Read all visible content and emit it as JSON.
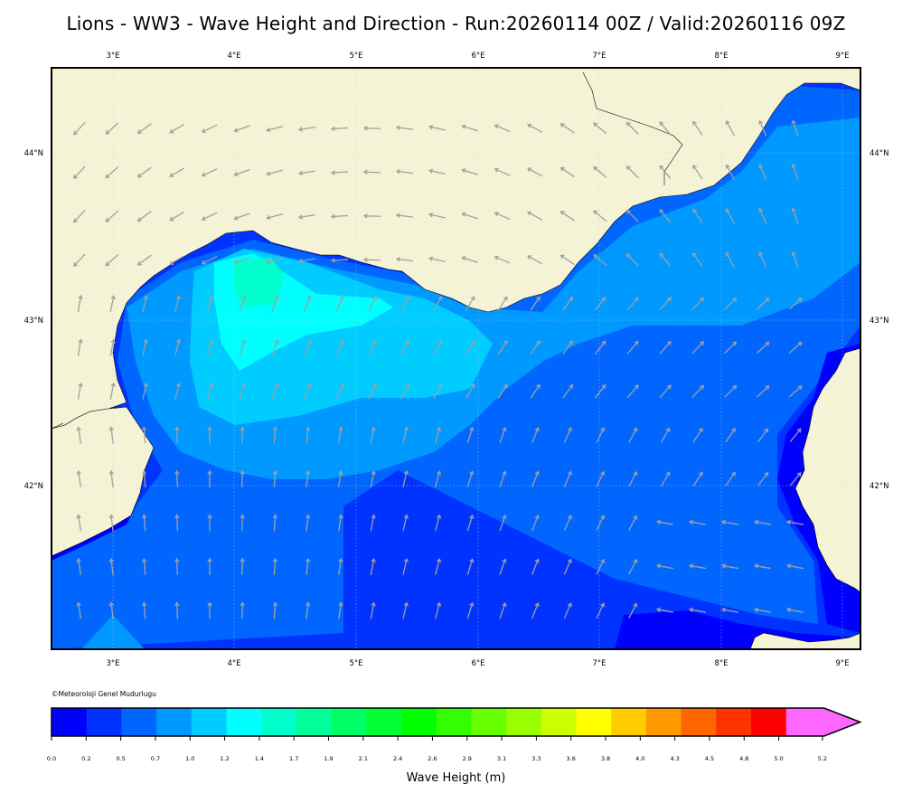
{
  "title": "Lions - WW3 - Wave Height and Direction - Run:20260114 00Z / Valid:20260116 09Z",
  "credit": "©Meteoroloji Genel Mudurlugu",
  "lon_ticks": [
    "3°E",
    "4°E",
    "5°E",
    "6°E",
    "7°E",
    "8°E",
    "9°E"
  ],
  "lat_ticks": [
    "44°N",
    "43°N",
    "42°N"
  ],
  "colors": {
    "land": "#f5f3d6",
    "arrow": "#a0a0a0",
    "coast": "#000000",
    "palette": [
      "#0000ff",
      "#0033ff",
      "#0066ff",
      "#0099ff",
      "#00ccff",
      "#00ffff",
      "#00ffcc",
      "#00ff99",
      "#00ff66",
      "#00ff33",
      "#00ff00",
      "#33ff00",
      "#66ff00",
      "#99ff00",
      "#ccff00",
      "#ffff00",
      "#ffcc00",
      "#ff9900",
      "#ff6600",
      "#ff3300",
      "#ff0000",
      "#ff66ff"
    ]
  },
  "colorbar": {
    "labels": [
      "0.0",
      "0.2",
      "0.5",
      "0.7",
      "1.0",
      "1.2",
      "1.4",
      "1.7",
      "1.9",
      "2.1",
      "2.4",
      "2.6",
      "2.9",
      "3.1",
      "3.3",
      "3.6",
      "3.8",
      "4.0",
      "4.3",
      "4.5",
      "4.8",
      "5.0",
      "5.2"
    ],
    "title": "Wave Height (m)"
  }
}
